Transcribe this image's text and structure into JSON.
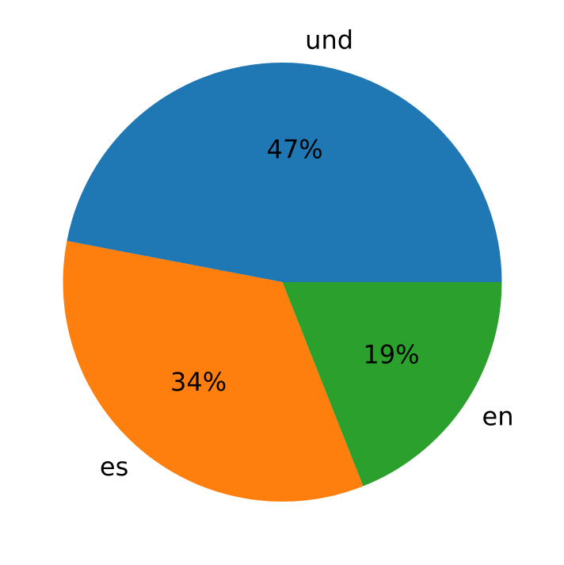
{
  "chart_data": {
    "type": "pie",
    "title": "",
    "startangle_deg": 0,
    "direction": "counterclockwise",
    "legend": "none",
    "slices": [
      {
        "label": "und",
        "value": 47,
        "percent_label": "47%",
        "color": "#1f77b4"
      },
      {
        "label": "es",
        "value": 34,
        "percent_label": "34%",
        "color": "#ff7f0e"
      },
      {
        "label": "en",
        "value": 19,
        "percent_label": "19%",
        "color": "#2ca02c"
      }
    ]
  }
}
